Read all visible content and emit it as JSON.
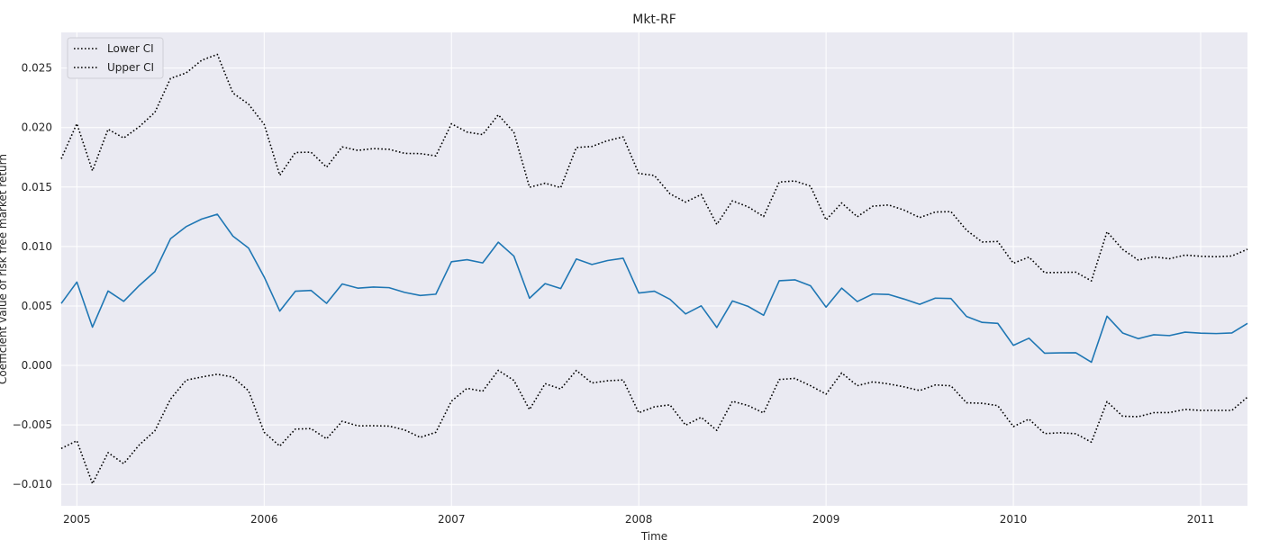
{
  "chart_data": {
    "type": "line",
    "title": "Mkt-RF",
    "xlabel": "Time",
    "ylabel": "Coefficient value of risk free market return",
    "x_start": "2004-12",
    "x_step": "1 month",
    "xlim": [
      "2004-12",
      "2011-04"
    ],
    "ylim": [
      -0.0118,
      0.028
    ],
    "x_ticks": [
      {
        "label": "2005",
        "date": "2005-01"
      },
      {
        "label": "2006",
        "date": "2006-01"
      },
      {
        "label": "2007",
        "date": "2007-01"
      },
      {
        "label": "2008",
        "date": "2008-01"
      },
      {
        "label": "2009",
        "date": "2009-01"
      },
      {
        "label": "2010",
        "date": "2010-01"
      },
      {
        "label": "2011",
        "date": "2011-01"
      }
    ],
    "y_ticks": [
      -0.01,
      -0.005,
      0.0,
      0.005,
      0.01,
      0.015,
      0.02,
      0.025
    ],
    "y_tick_labels": [
      "−0.010",
      "−0.005",
      "0.000",
      "0.005",
      "0.010",
      "0.015",
      "0.020",
      "0.025"
    ],
    "grid": true,
    "background": "#eaeaf2",
    "legend": {
      "placement": "top-left",
      "entries": [
        "Lower CI",
        "Upper CI"
      ]
    },
    "series": [
      {
        "style": "solid",
        "color": "#1f77b4",
        "values": [
          0.00521,
          0.00701,
          0.00322,
          0.00626,
          0.00539,
          0.00672,
          0.00789,
          0.01065,
          0.01167,
          0.01231,
          0.01271,
          0.01087,
          0.00987,
          0.00744,
          0.00457,
          0.00624,
          0.00631,
          0.00522,
          0.00685,
          0.0065,
          0.00659,
          0.00654,
          0.00614,
          0.00588,
          0.00599,
          0.00872,
          0.00889,
          0.00862,
          0.01036,
          0.00919,
          0.00565,
          0.00688,
          0.00646,
          0.00895,
          0.00849,
          0.00882,
          0.00901,
          0.00609,
          0.00624,
          0.00556,
          0.00433,
          0.00501,
          0.00319,
          0.00542,
          0.00497,
          0.00422,
          0.00712,
          0.0072,
          0.0067,
          0.0049,
          0.0065,
          0.00537,
          0.00601,
          0.00597,
          0.00558,
          0.00514,
          0.00566,
          0.00563,
          0.00412,
          0.00362,
          0.00354,
          0.00169,
          0.00229,
          0.00103,
          0.00106,
          0.00107,
          0.00027,
          0.00414,
          0.00273,
          0.00225,
          0.00258,
          0.00251,
          0.0028,
          0.00271,
          0.00268,
          0.00273,
          0.00354
        ]
      },
      {
        "name": "Lower CI",
        "style": "dotted",
        "color": "#000000",
        "values": [
          -0.00698,
          -0.00633,
          -0.00994,
          -0.00733,
          -0.00826,
          -0.00668,
          -0.00549,
          -0.00283,
          -0.00124,
          -0.00097,
          -0.00074,
          -0.00098,
          -0.00213,
          -0.00562,
          -0.00678,
          -0.00535,
          -0.00531,
          -0.00617,
          -0.00469,
          -0.00508,
          -0.00507,
          -0.0051,
          -0.00542,
          -0.00605,
          -0.00562,
          -0.003,
          -0.00192,
          -0.00217,
          -0.00041,
          -0.00126,
          -0.00371,
          -0.00153,
          -0.00198,
          -0.00042,
          -0.00147,
          -0.00129,
          -0.00122,
          -0.00398,
          -0.00348,
          -0.00331,
          -0.00502,
          -0.00436,
          -0.00546,
          -0.00301,
          -0.00337,
          -0.004,
          -0.00118,
          -0.00109,
          -0.0017,
          -0.00241,
          -0.00063,
          -0.0017,
          -0.00138,
          -0.00155,
          -0.0018,
          -0.00211,
          -0.00164,
          -0.00171,
          -0.00314,
          -0.00318,
          -0.00338,
          -0.00514,
          -0.00451,
          -0.00573,
          -0.00566,
          -0.00574,
          -0.00645,
          -0.00304,
          -0.00427,
          -0.00431,
          -0.00397,
          -0.00396,
          -0.0037,
          -0.00378,
          -0.00378,
          -0.00378,
          -0.00266
        ]
      },
      {
        "name": "Upper CI",
        "style": "dotted",
        "color": "#000000",
        "values": [
          0.01738,
          0.02033,
          0.01637,
          0.01986,
          0.01912,
          0.02007,
          0.02128,
          0.02413,
          0.02459,
          0.02566,
          0.02615,
          0.0229,
          0.02197,
          0.02027,
          0.01599,
          0.0179,
          0.01793,
          0.01667,
          0.01837,
          0.01808,
          0.01823,
          0.01817,
          0.01783,
          0.01781,
          0.01762,
          0.02032,
          0.01962,
          0.01941,
          0.02107,
          0.0196,
          0.01498,
          0.01532,
          0.01495,
          0.01832,
          0.01841,
          0.0189,
          0.01921,
          0.01614,
          0.01597,
          0.01443,
          0.01373,
          0.01437,
          0.01186,
          0.01384,
          0.01334,
          0.01252,
          0.01542,
          0.01551,
          0.01508,
          0.01223,
          0.01366,
          0.0125,
          0.01339,
          0.01349,
          0.01306,
          0.01243,
          0.0129,
          0.01293,
          0.01137,
          0.01038,
          0.01042,
          0.00859,
          0.00911,
          0.0078,
          0.00782,
          0.00784,
          0.00711,
          0.01124,
          0.00976,
          0.00886,
          0.00913,
          0.00897,
          0.00928,
          0.00918,
          0.00914,
          0.0092,
          0.00977
        ]
      }
    ]
  }
}
